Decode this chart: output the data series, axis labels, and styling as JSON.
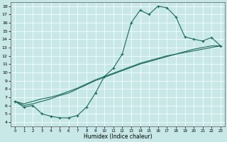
{
  "xlabel": "Humidex (Indice chaleur)",
  "bg_color": "#c8e8e8",
  "line_color": "#1a6b5a",
  "xlim": [
    -0.5,
    23.5
  ],
  "ylim": [
    3.5,
    18.5
  ],
  "xticks": [
    0,
    1,
    2,
    3,
    4,
    5,
    6,
    7,
    8,
    9,
    10,
    11,
    12,
    13,
    14,
    15,
    16,
    17,
    18,
    19,
    20,
    21,
    22,
    23
  ],
  "yticks": [
    4,
    5,
    6,
    7,
    8,
    9,
    10,
    11,
    12,
    13,
    14,
    15,
    16,
    17,
    18
  ],
  "curve1_x": [
    0,
    1,
    2,
    3,
    4,
    5,
    6,
    7,
    8,
    9,
    10,
    11,
    12,
    13,
    14,
    15,
    16,
    17,
    18,
    19,
    20,
    21,
    22,
    23
  ],
  "curve1_y": [
    6.5,
    5.8,
    6.0,
    5.0,
    4.7,
    4.5,
    4.5,
    4.8,
    5.8,
    7.5,
    9.5,
    10.5,
    12.2,
    16.0,
    17.5,
    17.0,
    18.0,
    17.8,
    16.7,
    14.3,
    14.0,
    13.8,
    14.2,
    13.2
  ],
  "curve2_x": [
    0,
    23
  ],
  "curve2_y": [
    6.5,
    13.2
  ],
  "curve3_x": [
    0,
    23
  ],
  "curve3_y": [
    6.5,
    13.2
  ],
  "curve2_full_x": [
    0,
    1,
    2,
    3,
    4,
    5,
    6,
    7,
    8,
    9,
    10,
    11,
    12,
    13,
    14,
    15,
    16,
    17,
    18,
    19,
    20,
    21,
    22,
    23
  ],
  "curve2_full_y": [
    6.5,
    6.0,
    6.2,
    6.5,
    6.8,
    7.2,
    7.5,
    8.0,
    8.5,
    9.0,
    9.4,
    9.8,
    10.2,
    10.6,
    11.0,
    11.3,
    11.6,
    11.9,
    12.2,
    12.4,
    12.6,
    12.8,
    13.0,
    13.2
  ],
  "curve3_full_x": [
    0,
    1,
    2,
    3,
    4,
    5,
    6,
    7,
    8,
    9,
    10,
    11,
    12,
    13,
    14,
    15,
    16,
    17,
    18,
    19,
    20,
    21,
    22,
    23
  ],
  "curve3_full_y": [
    6.5,
    6.2,
    6.5,
    6.8,
    7.0,
    7.3,
    7.7,
    8.1,
    8.6,
    9.1,
    9.5,
    9.9,
    10.3,
    10.7,
    11.1,
    11.4,
    11.7,
    12.0,
    12.2,
    12.5,
    12.8,
    13.0,
    13.2,
    13.2
  ]
}
